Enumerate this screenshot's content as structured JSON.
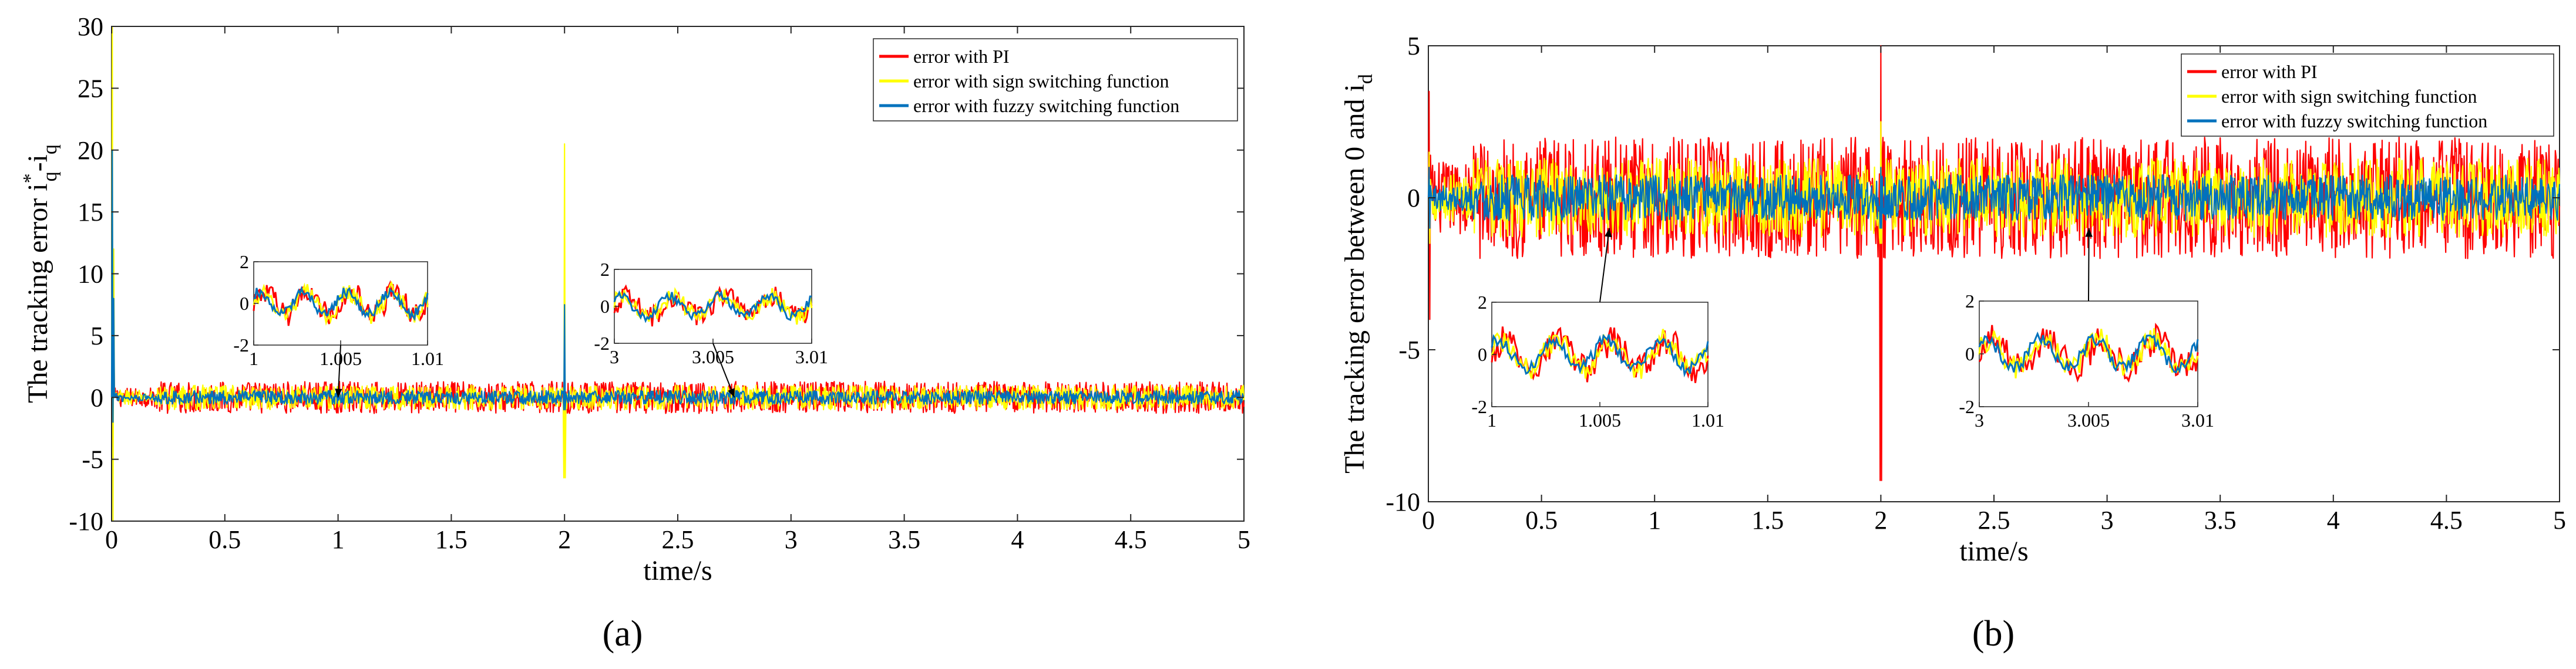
{
  "chart_data": [
    {
      "type": "line",
      "panel_label": "(a)",
      "xlabel": "time/s",
      "ylabel_text": "The tracking error i",
      "ylabel_sub1": "q",
      "ylabel_sup1": "*",
      "ylabel_mid": "-i",
      "ylabel_sub2": "q",
      "xlim": [
        0,
        5
      ],
      "ylim": [
        -10,
        30
      ],
      "xticks": [
        0,
        0.5,
        1,
        1.5,
        2,
        2.5,
        3,
        3.5,
        4,
        4.5,
        5
      ],
      "xtick_labels": [
        "0",
        "0.5",
        "1",
        "1.5",
        "2",
        "2.5",
        "3",
        "3.5",
        "4",
        "4.5",
        "5"
      ],
      "yticks": [
        -10,
        -5,
        0,
        5,
        10,
        15,
        20,
        25,
        30
      ],
      "ytick_labels": [
        "-10",
        "-5",
        "0",
        "5",
        "10",
        "15",
        "20",
        "25",
        "30"
      ],
      "legend_position": "top-right",
      "series": [
        {
          "name": "error with PI",
          "color": "#ff0000",
          "steady_amplitude": 1.3,
          "startup_peak": 17,
          "startup_trough": -4,
          "transient_at_2": [
            -0.5,
            1.0
          ]
        },
        {
          "name": "error with sign switching function",
          "color": "#ffff00",
          "steady_amplitude": 1.0,
          "startup_peak": 30,
          "startup_trough": -10,
          "transient_at_2": [
            -6.5,
            20.5
          ]
        },
        {
          "name": "error with fuzzy switching function",
          "color": "#0072bd",
          "steady_amplitude": 0.55,
          "startup_peak": 20,
          "startup_trough": -2,
          "transient_at_2": [
            -1,
            7.5
          ]
        }
      ],
      "insets": [
        {
          "xlim": [
            1,
            1.01
          ],
          "ylim": [
            -2,
            2
          ],
          "xtick_labels": [
            "1",
            "1.005",
            "1.01"
          ],
          "ytick_labels": [
            "-2",
            "0",
            "2"
          ],
          "zoom_point": [
            1.0,
            0
          ]
        },
        {
          "xlim": [
            3,
            3.01
          ],
          "ylim": [
            -2,
            2
          ],
          "xtick_labels": [
            "3",
            "3.005",
            "3.01"
          ],
          "ytick_labels": [
            "-2",
            "0",
            "2"
          ],
          "zoom_point": [
            2.75,
            0
          ]
        }
      ]
    },
    {
      "type": "line",
      "panel_label": "(b)",
      "xlabel": "time/s",
      "ylabel_text": "The tracking error between 0 and i",
      "ylabel_sub1": "d",
      "xlim": [
        0,
        5
      ],
      "ylim": [
        -10,
        5
      ],
      "xticks": [
        0,
        0.5,
        1,
        1.5,
        2,
        2.5,
        3,
        3.5,
        4,
        4.5,
        5
      ],
      "xtick_labels": [
        "0",
        "0.5",
        "1",
        "1.5",
        "2",
        "2.5",
        "3",
        "3.5",
        "4",
        "4.5",
        "5"
      ],
      "yticks": [
        -10,
        -5,
        0,
        5
      ],
      "ytick_labels": [
        "-10",
        "-5",
        "0",
        "5"
      ],
      "legend_position": "top-right",
      "series": [
        {
          "name": "error with PI",
          "color": "#ff0000",
          "steady_amplitude": 2.0,
          "startup_peak": 3.5,
          "startup_trough": -4,
          "transient_at_2": [
            -9.3,
            5
          ]
        },
        {
          "name": "error with sign switching function",
          "color": "#ffff00",
          "steady_amplitude": 1.3,
          "startup_peak": 1.5,
          "startup_trough": -1.5,
          "transient_at_2": [
            -1.5,
            2.5
          ]
        },
        {
          "name": "error with fuzzy switching function",
          "color": "#0072bd",
          "steady_amplitude": 0.75,
          "startup_peak": 1,
          "startup_trough": -1,
          "transient_at_2": [
            -1,
            1
          ]
        }
      ],
      "insets": [
        {
          "xlim": [
            1,
            1.01
          ],
          "ylim": [
            -2,
            2
          ],
          "xtick_labels": [
            "1",
            "1.005",
            "1.01"
          ],
          "ytick_labels": [
            "-2",
            "0",
            "2"
          ],
          "zoom_point": [
            0.8,
            -1
          ]
        },
        {
          "xlim": [
            3,
            3.01
          ],
          "ylim": [
            -2,
            2
          ],
          "xtick_labels": [
            "3",
            "3.005",
            "3.01"
          ],
          "ytick_labels": [
            "-2",
            "0",
            "2"
          ],
          "zoom_point": [
            2.92,
            -1
          ]
        }
      ]
    }
  ]
}
